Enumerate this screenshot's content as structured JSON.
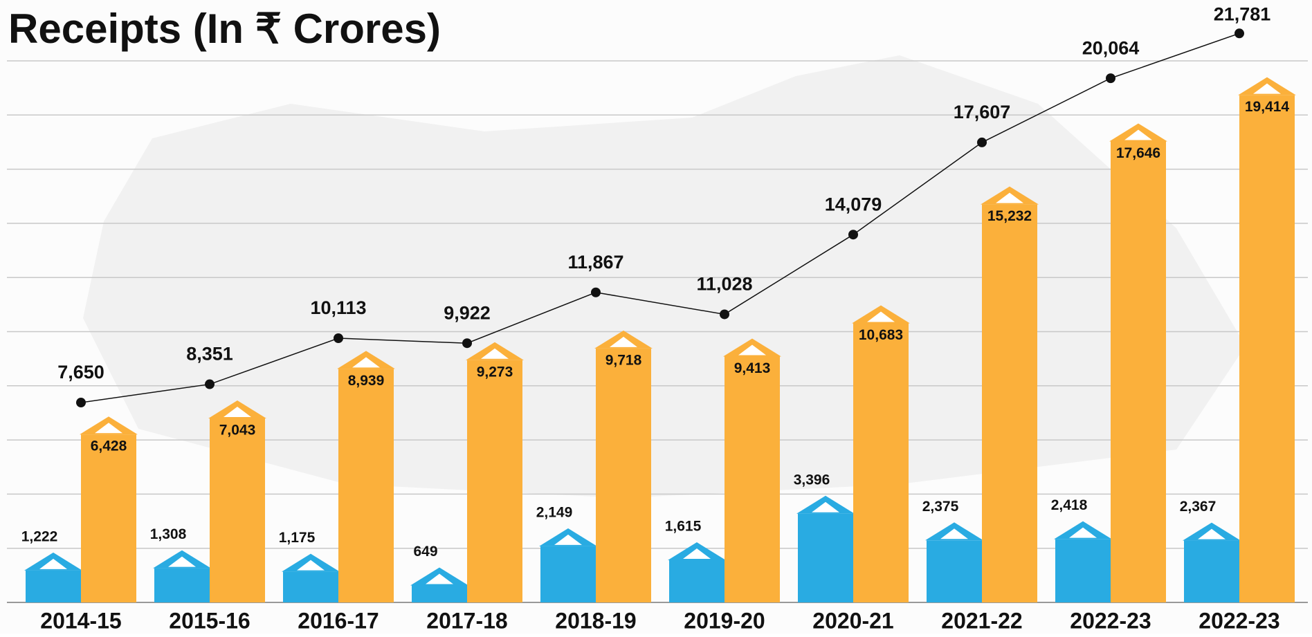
{
  "chart_data": {
    "type": "bar",
    "title": "Receipts (In ₹ Crores)",
    "categories": [
      "2014-15",
      "2015-16",
      "2016-17",
      "2017-18",
      "2018-19",
      "2019-20",
      "2020-21",
      "2021-22",
      "2022-23",
      "2022-23"
    ],
    "ylim": [
      0,
      22000
    ],
    "series": [
      {
        "color": "#29abe2",
        "type": "bar",
        "values": [
          1222,
          1308,
          1175,
          649,
          2149,
          1615,
          3396,
          2375,
          2418,
          2367
        ],
        "value_labels": [
          "1,222",
          "1,308",
          "1,175",
          "649",
          "2,149",
          "1,615",
          "3,396",
          "2,375",
          "2,418",
          "2,367"
        ]
      },
      {
        "color": "#fbb03b",
        "type": "bar",
        "values": [
          6428,
          7043,
          8939,
          9273,
          9718,
          9413,
          10683,
          15232,
          17646,
          19414
        ],
        "value_labels": [
          "6,428",
          "7,043",
          "8,939",
          "9,273",
          "9,718",
          "9,413",
          "10,683",
          "15,232",
          "17,646",
          "19,414"
        ]
      },
      {
        "color": "#111111",
        "type": "line",
        "values": [
          7650,
          8351,
          10113,
          9922,
          11867,
          11028,
          14079,
          17607,
          20064,
          21781
        ],
        "value_labels": [
          "7,650",
          "8,351",
          "10,113",
          "9,922",
          "11,867",
          "11,028",
          "14,079",
          "17,607",
          "20,064",
          "21,781"
        ]
      }
    ]
  }
}
